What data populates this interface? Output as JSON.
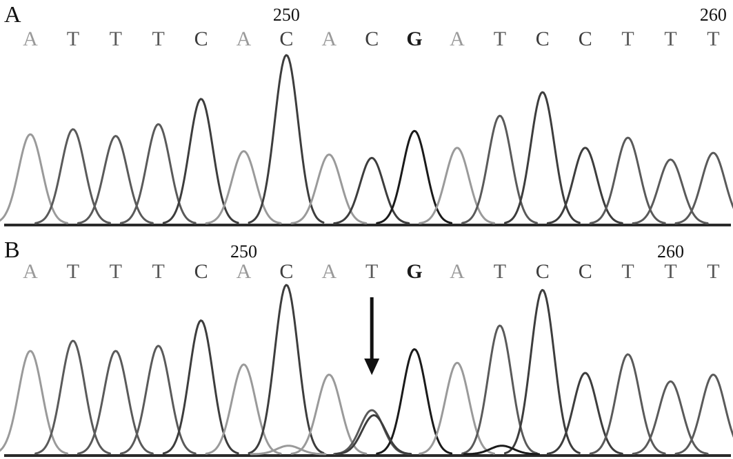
{
  "colors": {
    "A": "#9a9a9a",
    "T": "#5a5a5a",
    "C": "#3d3d3d",
    "G": "#1a1a1a",
    "baseline": "#2a2a2a",
    "arrow": "#111111"
  },
  "chart_data": [
    {
      "type": "line",
      "panel": "A",
      "bases": [
        "A",
        "T",
        "T",
        "T",
        "C",
        "A",
        "C",
        "A",
        "C",
        "G",
        "A",
        "T",
        "C",
        "C",
        "T",
        "T",
        "T"
      ],
      "position_labels": [
        {
          "text": "250",
          "base_index": 6
        },
        {
          "text": "260",
          "base_index": 16
        }
      ],
      "peak_heights": [
        0.53,
        0.56,
        0.52,
        0.59,
        0.74,
        0.43,
        1.0,
        0.41,
        0.39,
        0.55,
        0.45,
        0.64,
        0.78,
        0.45,
        0.51,
        0.38,
        0.42
      ],
      "secondary_peaks": [],
      "annotation_arrow_base_index": null
    },
    {
      "type": "line",
      "panel": "B",
      "bases": [
        "A",
        "T",
        "T",
        "T",
        "C",
        "A",
        "C",
        "A",
        "T",
        "G",
        "A",
        "T",
        "C",
        "C",
        "T",
        "T",
        "T"
      ],
      "position_labels": [
        {
          "text": "250",
          "base_index": 5
        },
        {
          "text": "260",
          "base_index": 15
        }
      ],
      "peak_heights": [
        0.61,
        0.67,
        0.61,
        0.64,
        0.79,
        0.53,
        1.0,
        0.47,
        0.26,
        0.62,
        0.54,
        0.76,
        0.97,
        0.48,
        0.59,
        0.43,
        0.47
      ],
      "secondary_peaks": [
        {
          "base_index": 8,
          "base": "C",
          "height": 0.23
        },
        {
          "base_index": 6,
          "base": "A",
          "height": 0.05
        },
        {
          "base_index": 11,
          "base": "G",
          "height": 0.05
        }
      ],
      "annotation_arrow_base_index": 8
    }
  ]
}
